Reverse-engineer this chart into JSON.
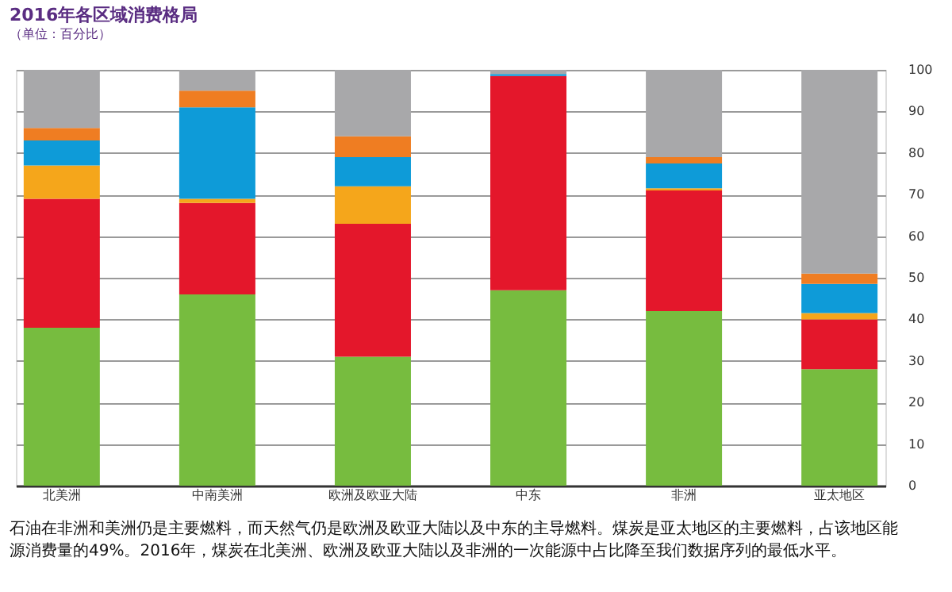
{
  "chart_data": {
    "type": "bar",
    "stacked": true,
    "title": "2016年各区域消费格局",
    "subtitle": "（单位：百分比）",
    "categories": [
      "北美洲",
      "中南美洲",
      "欧洲及欧亚大陆",
      "中东",
      "非洲",
      "亚太地区"
    ],
    "series": [
      {
        "color": "#77bc3f",
        "values": [
          38,
          46,
          31,
          47,
          42,
          28
        ]
      },
      {
        "color": "#e4172b",
        "values": [
          31,
          22,
          32,
          51.5,
          29,
          12
        ]
      },
      {
        "color": "#f5a61b",
        "values": [
          8,
          1,
          9,
          0,
          0.5,
          1.5
        ]
      },
      {
        "color": "#0e9bd8",
        "values": [
          6,
          22,
          7,
          0.5,
          6,
          7
        ]
      },
      {
        "color": "#ef7d22",
        "values": [
          3,
          4,
          5,
          0,
          1.5,
          2.5
        ]
      },
      {
        "color": "#a8a8aa",
        "values": [
          14,
          5,
          16,
          1,
          21,
          49
        ]
      }
    ],
    "ylim": [
      0,
      100
    ],
    "yticks": [
      0,
      10,
      20,
      30,
      40,
      50,
      60,
      70,
      80,
      90,
      100
    ],
    "grid": "y",
    "legend": false,
    "annotations": [
      "石油在非洲和美洲仍是主要燃料，而天然气仍是欧洲及欧亚大陆以及中东的主导燃料。煤炭是亚太地区的主要燃料，占该地区能源消费量的49%。2016年，煤炭在北美洲、欧洲及欧亚大陆以及非洲的一次能源中占比降至我们数据序列的最低水平。"
    ]
  }
}
